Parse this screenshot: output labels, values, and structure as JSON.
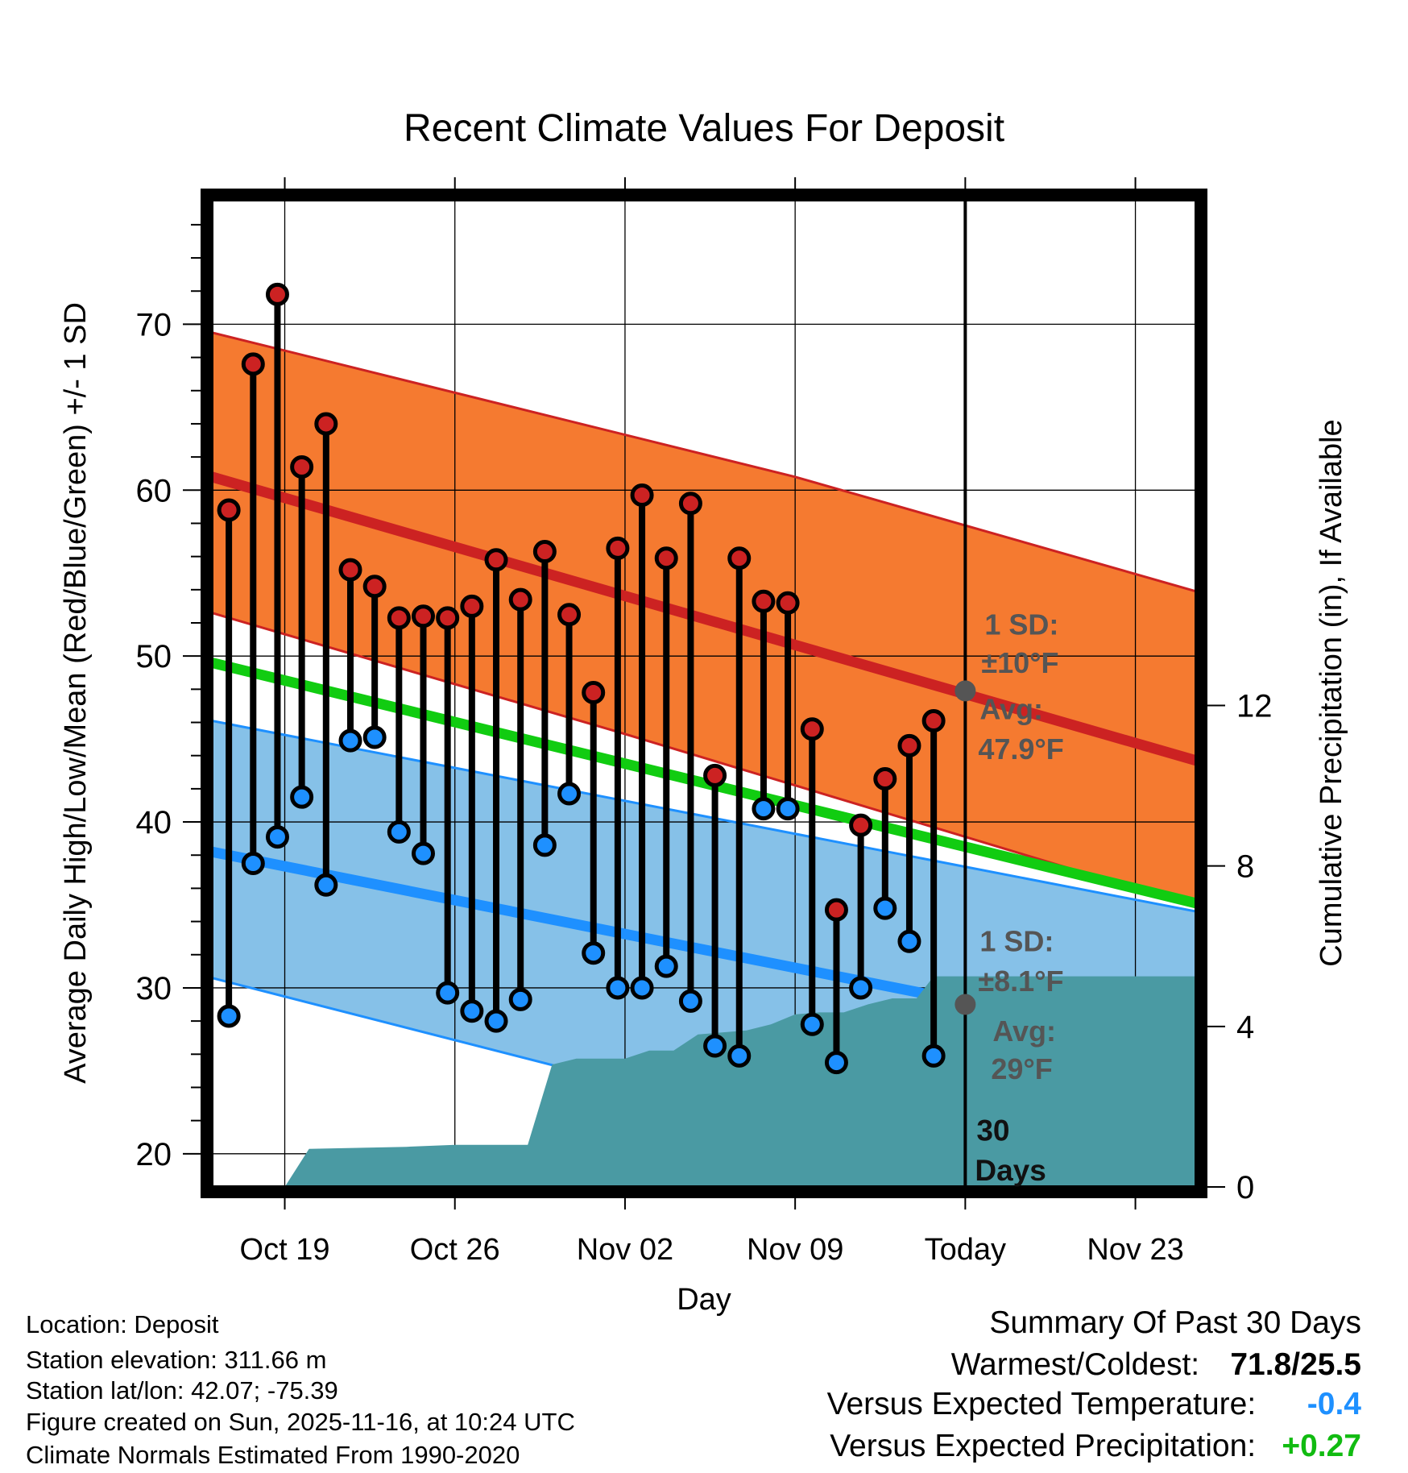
{
  "chart_data": {
    "type": "line",
    "title": "Recent Climate Values For Deposit",
    "xlabel": "Day",
    "ylabel": "Average Daily High/Low/Mean (Red/Blue/Green) +/- 1 SD",
    "ylabel_right": "Cumulative Precipitation (in), If Available",
    "x_range": [
      0,
      40.5
    ],
    "ylim": [
      18,
      77.5
    ],
    "ylim_right": [
      0,
      24.6
    ],
    "x_ticks": [
      {
        "x": 3,
        "label": "Oct 19"
      },
      {
        "x": 10,
        "label": "Oct 26"
      },
      {
        "x": 17,
        "label": "Nov 02"
      },
      {
        "x": 24,
        "label": "Nov 09"
      },
      {
        "x": 31,
        "label": "Today"
      },
      {
        "x": 38,
        "label": "Nov 23"
      }
    ],
    "y_ticks": [
      20,
      30,
      40,
      50,
      60,
      70
    ],
    "y_ticks_right": [
      0,
      4,
      8,
      12
    ],
    "today_x": 31,
    "normals": {
      "high_avg": [
        [
          0,
          60.8
        ],
        [
          40.5,
          43.7
        ]
      ],
      "high_upper": [
        [
          0,
          69.5
        ],
        [
          24,
          60.8
        ],
        [
          40.5,
          53.9
        ]
      ],
      "high_lower": [
        [
          0,
          52.6
        ],
        [
          17,
          45.3
        ],
        [
          40.5,
          34.9
        ]
      ],
      "low_avg": [
        [
          0,
          38.2
        ],
        [
          40.5,
          26.4
        ]
      ],
      "low_upper": [
        [
          0,
          46.1
        ],
        [
          40.5,
          34.6
        ]
      ],
      "low_lower": [
        [
          0,
          30.6
        ],
        [
          20,
          23.1
        ],
        [
          40.5,
          18.5
        ]
      ],
      "mean_avg": [
        [
          0,
          49.6
        ],
        [
          40.5,
          35.1
        ]
      ]
    },
    "daily": {
      "x": [
        0.7,
        1.7,
        2.7,
        3.7,
        4.7,
        5.7,
        6.7,
        7.7,
        8.7,
        9.7,
        10.7,
        11.7,
        12.7,
        13.7,
        14.7,
        15.7,
        16.7,
        17.7,
        18.7,
        19.7,
        20.7,
        21.7,
        22.7,
        23.7,
        24.7,
        25.7,
        26.7,
        27.7,
        28.7,
        29.7
      ],
      "high": [
        58.8,
        67.6,
        71.8,
        61.4,
        64.0,
        55.2,
        54.2,
        52.3,
        52.4,
        52.3,
        53.0,
        55.8,
        53.4,
        56.3,
        52.5,
        47.8,
        56.5,
        59.7,
        55.9,
        59.2,
        42.8,
        55.9,
        53.3,
        53.2,
        45.6,
        34.7,
        39.8,
        42.6,
        44.6,
        46.1
      ],
      "low": [
        28.3,
        37.5,
        39.1,
        41.5,
        36.2,
        44.9,
        45.1,
        39.4,
        38.1,
        29.7,
        28.6,
        28.0,
        29.3,
        38.6,
        41.7,
        32.1,
        30.0,
        30.0,
        31.3,
        29.2,
        26.5,
        25.9,
        40.8,
        40.8,
        27.8,
        25.5,
        30.0,
        34.8,
        32.8,
        25.9
      ]
    },
    "precipitation": [
      [
        0,
        0
      ],
      [
        3,
        0
      ],
      [
        4,
        0.95
      ],
      [
        8,
        1.0
      ],
      [
        10,
        1.05
      ],
      [
        13,
        1.05
      ],
      [
        14,
        3.05
      ],
      [
        15,
        3.2
      ],
      [
        17,
        3.2
      ],
      [
        18,
        3.4
      ],
      [
        19,
        3.4
      ],
      [
        20,
        3.8
      ],
      [
        22,
        3.9
      ],
      [
        23,
        4.05
      ],
      [
        24,
        4.3
      ],
      [
        25,
        4.35
      ],
      [
        26,
        4.35
      ],
      [
        27,
        4.55
      ],
      [
        28,
        4.7
      ],
      [
        29,
        4.7
      ],
      [
        29.7,
        5.25
      ],
      [
        31,
        5.25
      ],
      [
        40.5,
        5.25
      ]
    ],
    "annotations": {
      "high_sd_line1": "1 SD:",
      "high_sd_line2": "±10°F",
      "high_avg_line1": "Avg:",
      "high_avg_line2": "47.9°F",
      "high_avg_value": 47.9,
      "low_sd_line1": "1 SD:",
      "low_sd_line2": "±8.1°F",
      "low_avg_line1": "Avg:",
      "low_avg_line2": "29°F",
      "low_avg_value": 29,
      "days_line1": "30",
      "days_line2": "Days"
    },
    "colors": {
      "high_band": "#f57a30",
      "high_line": "#cc2222",
      "low_band": "#86c1e8",
      "low_line": "#1e90ff",
      "mean_line": "#11cc11",
      "precip": "#4a9aa3",
      "high_dot": "#cc2222",
      "low_dot": "#1e90ff",
      "annotation": "#555555"
    }
  },
  "info": {
    "location": "Location: Deposit",
    "elevation": "Station elevation: 311.66 m",
    "latlon": "Station lat/lon: 42.07; -75.39",
    "created": "Figure created on Sun, 2025-11-16, at 10:24 UTC",
    "normals": "Climate Normals Estimated From 1990-2020"
  },
  "summary": {
    "title": "Summary Of Past 30 Days",
    "warm_cold_label": "Warmest/Coldest:",
    "warm_cold_value": "71.8/25.5",
    "temp_label": "Versus Expected Temperature:",
    "temp_value": "-0.4",
    "temp_color": "#1e90ff",
    "precip_label": "Versus Expected Precipitation:",
    "precip_value": "+0.27",
    "precip_color": "#11bb11"
  }
}
